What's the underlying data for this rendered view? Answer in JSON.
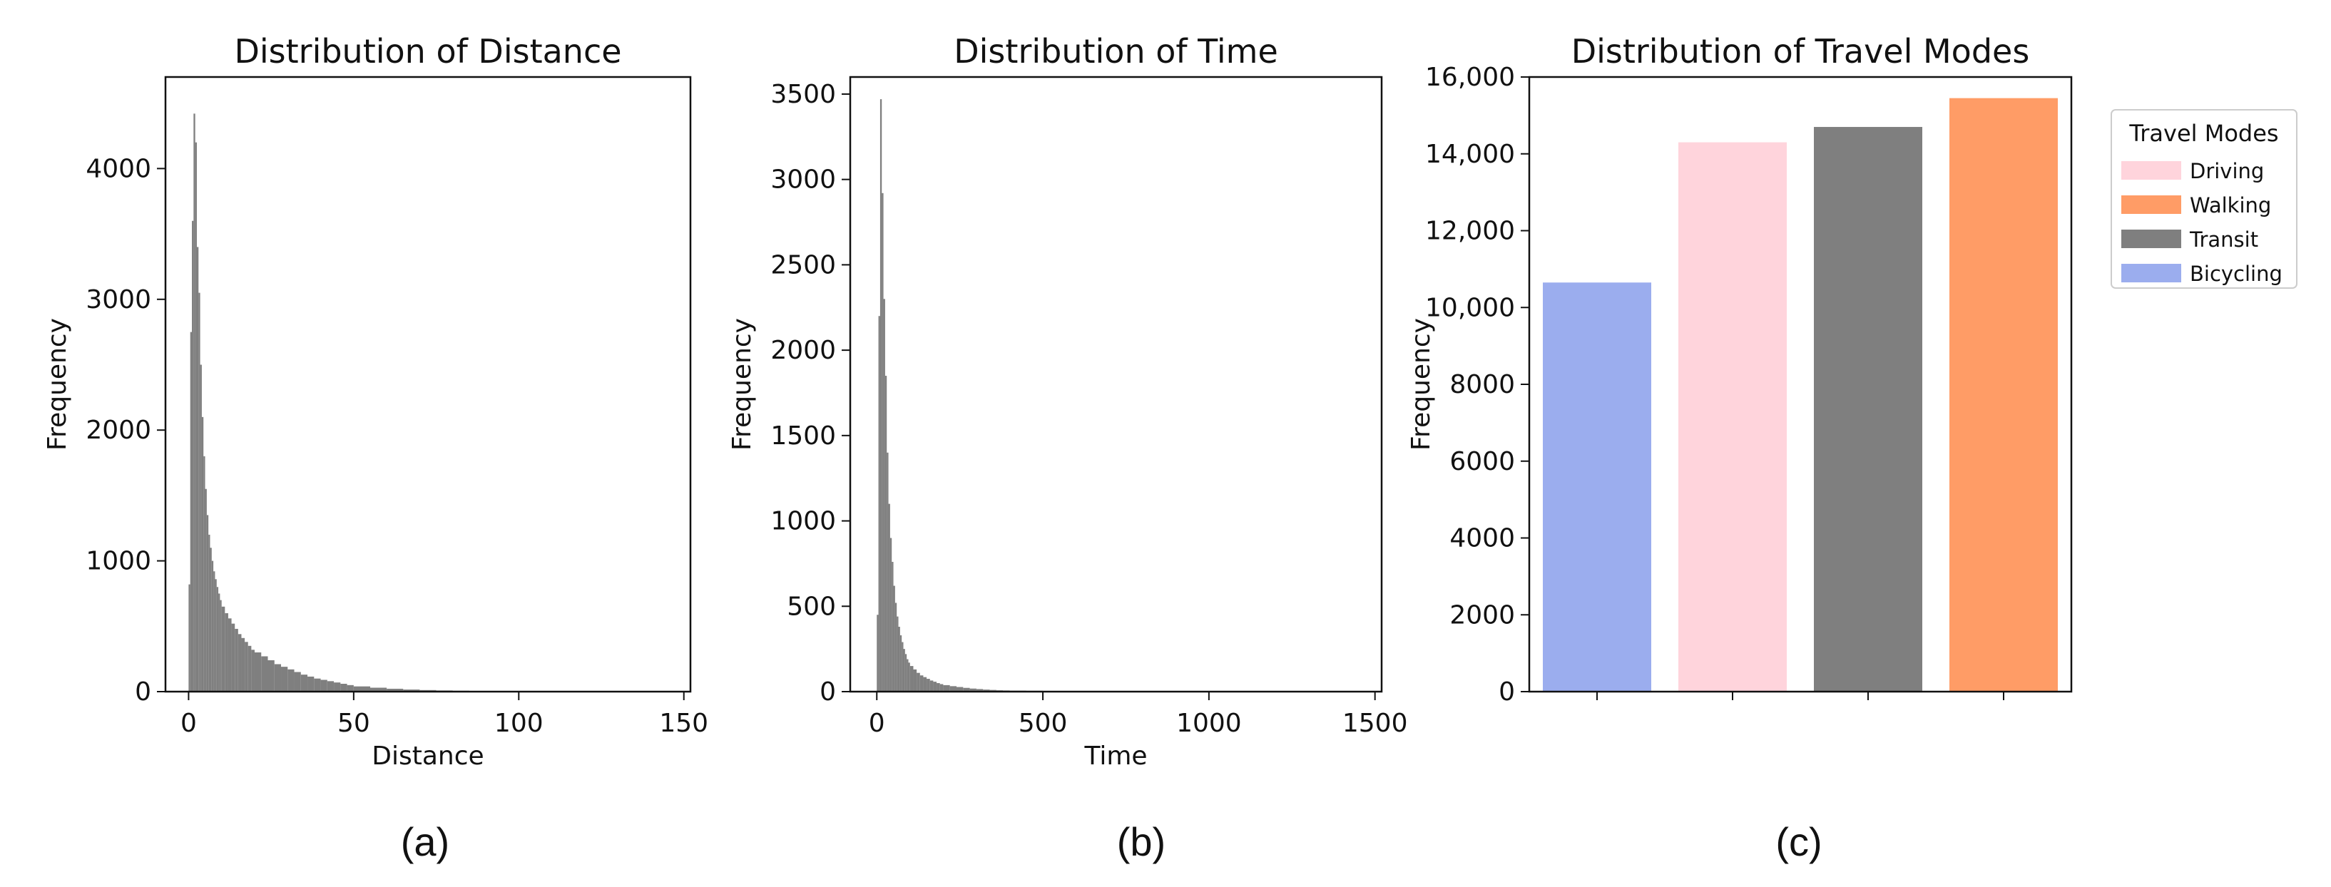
{
  "chart_data": [
    {
      "type": "bar",
      "title": "Distribution of Distance",
      "xlabel": "Distance",
      "ylabel": "Frequency",
      "xlim": [
        -7,
        152
      ],
      "ylim": [
        0,
        4700
      ],
      "xticks": [
        0,
        50,
        100,
        150
      ],
      "yticks": [
        0,
        1000,
        2000,
        3000,
        4000
      ],
      "bar_color": "#7f7f7f",
      "bin_width": 0.5,
      "x": [
        0,
        0.5,
        1,
        1.5,
        2,
        2.5,
        3,
        3.5,
        4,
        4.5,
        5,
        5.5,
        6,
        6.5,
        7,
        7.5,
        8,
        8.5,
        9,
        9.5,
        10,
        11,
        12,
        13,
        14,
        15,
        16,
        17,
        18,
        19,
        20,
        22,
        24,
        26,
        28,
        30,
        32,
        34,
        36,
        38,
        40,
        42,
        44,
        46,
        48,
        50,
        55,
        60,
        65,
        70,
        75,
        80,
        85,
        90,
        95,
        100,
        110,
        120,
        130,
        140
      ],
      "values": [
        820,
        2750,
        3600,
        4420,
        4200,
        3400,
        3050,
        2500,
        2100,
        1800,
        1550,
        1350,
        1200,
        1100,
        1000,
        920,
        860,
        800,
        750,
        700,
        650,
        600,
        560,
        520,
        480,
        440,
        410,
        380,
        350,
        320,
        300,
        270,
        240,
        210,
        190,
        170,
        150,
        130,
        115,
        100,
        90,
        80,
        70,
        60,
        50,
        40,
        30,
        22,
        16,
        12,
        9,
        7,
        5,
        4,
        3,
        2,
        2,
        1,
        1,
        1
      ],
      "panel_label": "(a)"
    },
    {
      "type": "bar",
      "title": "Distribution of Time",
      "xlabel": "Time",
      "ylabel": "Frequency",
      "xlim": [
        -80,
        1520
      ],
      "ylim": [
        0,
        3600
      ],
      "xticks": [
        0,
        500,
        1000,
        1500
      ],
      "yticks": [
        0,
        500,
        1000,
        1500,
        2000,
        2500,
        3000,
        3500
      ],
      "bar_color": "#7f7f7f",
      "bin_width": 5,
      "x": [
        0,
        5,
        10,
        15,
        20,
        25,
        30,
        35,
        40,
        45,
        50,
        55,
        60,
        65,
        70,
        75,
        80,
        85,
        90,
        95,
        100,
        110,
        120,
        130,
        140,
        150,
        160,
        170,
        180,
        190,
        200,
        220,
        240,
        260,
        280,
        300,
        320,
        340,
        360,
        380,
        400,
        450,
        500,
        550,
        600,
        650,
        700,
        750,
        800,
        900,
        1000,
        1100,
        1200,
        1300,
        1400
      ],
      "values": [
        450,
        2200,
        3470,
        2920,
        2300,
        1850,
        1400,
        1100,
        900,
        760,
        620,
        520,
        440,
        380,
        330,
        290,
        250,
        220,
        190,
        170,
        150,
        130,
        110,
        95,
        85,
        75,
        65,
        58,
        50,
        44,
        38,
        32,
        27,
        22,
        18,
        15,
        12,
        10,
        8,
        7,
        6,
        5,
        4,
        3,
        3,
        2,
        2,
        2,
        1,
        1,
        1,
        1,
        1,
        1,
        1
      ],
      "panel_label": "(b)"
    },
    {
      "type": "bar",
      "title": "Distribution of Travel Modes",
      "xlabel": "",
      "ylabel": "Frequency",
      "ylim": [
        0,
        16000
      ],
      "yticks": [
        0,
        2000,
        4000,
        6000,
        8000,
        "10,000",
        "12,000",
        "14,000",
        "16,000"
      ],
      "categories": [
        "Bicycling",
        "Driving",
        "Transit",
        "Walking"
      ],
      "values": [
        10650,
        14300,
        14700,
        15450
      ],
      "colors": [
        "#9badee",
        "#ffd4dc",
        "#7f7f7f",
        "#ff9c66"
      ],
      "legend": {
        "title": "Travel Modes",
        "placement": "outside-right",
        "entries": [
          {
            "label": "Driving",
            "color": "#ffd4dc"
          },
          {
            "label": "Walking",
            "color": "#ff9c66"
          },
          {
            "label": "Transit",
            "color": "#7f7f7f"
          },
          {
            "label": "Bicycling",
            "color": "#9badee"
          }
        ]
      },
      "panel_label": "(c)"
    }
  ]
}
